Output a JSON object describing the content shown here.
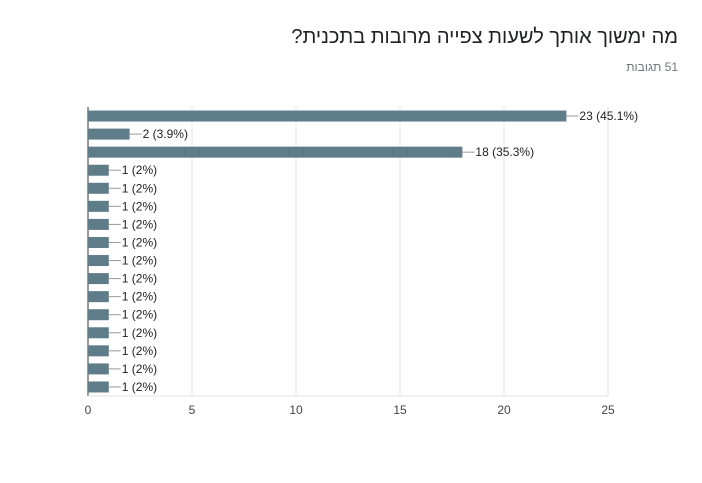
{
  "title": "מה ימשוך אותך לשעות צפייה מרובות בתכנית?",
  "subtitle": "51 תגובות",
  "colors": {
    "bar": "#5f7c89",
    "grid": "#e6e6e6",
    "axis": "#333333",
    "leader": "#999999"
  },
  "chart_data": {
    "type": "bar",
    "orientation": "horizontal",
    "title": "מה ימשוך אותך לשעות צפייה מרובות בתכנית?",
    "values": [
      23,
      2,
      18,
      1,
      1,
      1,
      1,
      1,
      1,
      1,
      1,
      1,
      1,
      1,
      1,
      1
    ],
    "data_labels": [
      "23 (45.1%)",
      "2 (3.9%)",
      "18 (35.3%)",
      "1 (2%)",
      "1 (2%)",
      "1 (2%)",
      "1 (2%)",
      "1 (2%)",
      "1 (2%)",
      "1 (2%)",
      "1 (2%)",
      "1 (2%)",
      "1 (2%)",
      "1 (2%)",
      "1 (2%)",
      "1 (2%)"
    ],
    "xlim": [
      0,
      25
    ],
    "x_ticks": [
      0,
      5,
      10,
      15,
      20,
      25
    ],
    "grid": true
  }
}
